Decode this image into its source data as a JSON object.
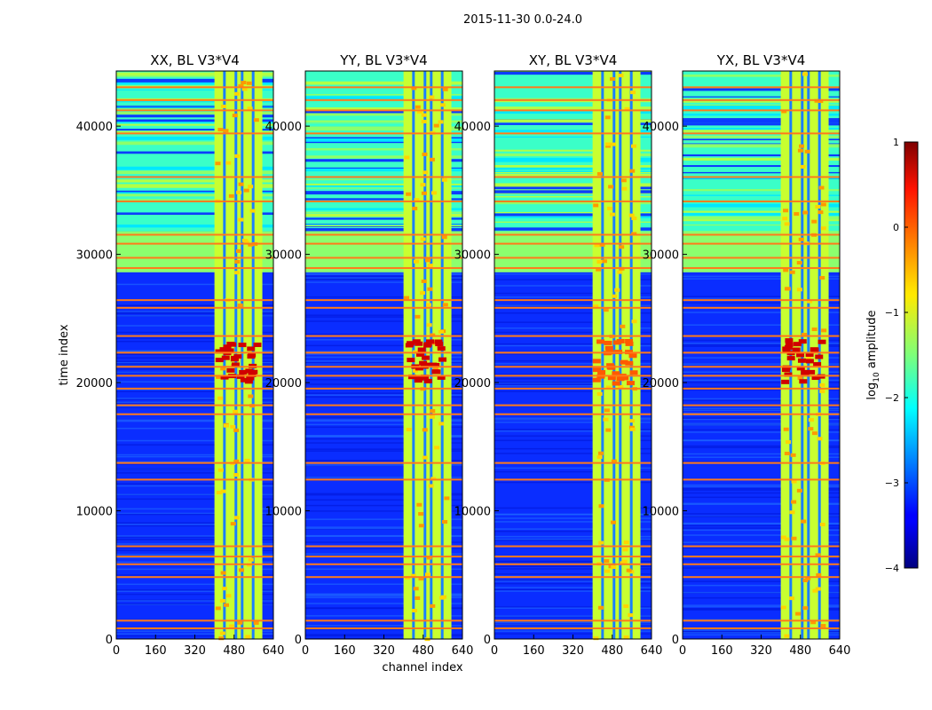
{
  "figure": {
    "title": "2015-11-30 0.0-24.0"
  },
  "chart_data": {
    "type": "heatmap",
    "shared_x_label": "channel index",
    "shared_y_label": "time index",
    "x_ticks": [
      "0",
      "160",
      "320",
      "480",
      "640"
    ],
    "y_ticks": [
      "0",
      "10000",
      "20000",
      "30000",
      "40000"
    ],
    "xlim": [
      0,
      640
    ],
    "ylim": [
      0,
      44300
    ],
    "colormap": "jet",
    "colorbar": {
      "label": "log10 amplitude",
      "label_base": "log",
      "label_sub": "10",
      "label_rest": " amplitude",
      "range": [
        -4,
        1
      ],
      "ticks": [
        "1",
        "0",
        "−1",
        "−2",
        "−3",
        "−4"
      ]
    },
    "panels": [
      {
        "title": "XX, BL V3*V4"
      },
      {
        "title": "YY, BL V3*V4"
      },
      {
        "title": "XY, BL V3*V4"
      },
      {
        "title": "YX, BL V3*V4"
      }
    ],
    "features": {
      "rfi_channel_band": [
        400,
        595
      ],
      "high_block_time_range": [
        31800,
        44300
      ],
      "flagged_band_time_range": [
        28600,
        31800
      ],
      "strong_rfi_time_range": [
        20000,
        23500
      ],
      "horizontal_flag_lines": [
        900,
        1500,
        4900,
        5900,
        6500,
        7300,
        12500,
        13800,
        17600,
        18300,
        19600,
        20600,
        21300,
        22400,
        23700,
        25900,
        26500,
        29000,
        29800,
        30900,
        31600,
        34200,
        36100,
        39500,
        41300,
        42100,
        43100
      ]
    }
  }
}
